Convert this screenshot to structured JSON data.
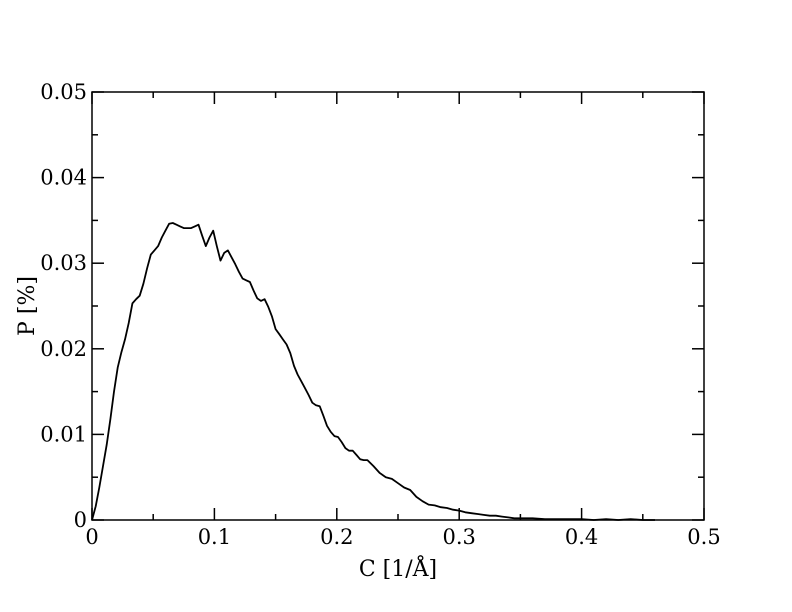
{
  "chart_data": {
    "type": "line",
    "title": "",
    "xlabel": "C [1/Å]",
    "ylabel": "P [%]",
    "xlim": [
      0,
      0.5
    ],
    "ylim": [
      0,
      0.05
    ],
    "x_ticks": [
      0,
      0.1,
      0.2,
      0.3,
      0.4,
      0.5
    ],
    "x_tick_labels": [
      "0",
      "0.1",
      "0.2",
      "0.3",
      "0.4",
      "0.5"
    ],
    "y_ticks": [
      0,
      0.01,
      0.02,
      0.03,
      0.04,
      0.05
    ],
    "y_tick_labels": [
      "0",
      "0.01",
      "0.02",
      "0.03",
      "0.04",
      "0.05"
    ],
    "x_minor_step": 0.05,
    "y_minor_step": 0.005,
    "grid": false,
    "legend": "none",
    "line_color": "#000000",
    "series": [
      {
        "x": [
          0.0,
          0.003,
          0.006,
          0.009,
          0.012,
          0.015,
          0.018,
          0.021,
          0.024,
          0.027,
          0.03,
          0.033,
          0.036,
          0.039,
          0.042,
          0.045,
          0.048,
          0.051,
          0.054,
          0.057,
          0.06,
          0.063,
          0.066,
          0.069,
          0.072,
          0.075,
          0.078,
          0.081,
          0.084,
          0.087,
          0.09,
          0.093,
          0.096,
          0.099,
          0.102,
          0.105,
          0.108,
          0.111,
          0.114,
          0.117,
          0.12,
          0.123,
          0.126,
          0.129,
          0.132,
          0.135,
          0.138,
          0.141,
          0.144,
          0.147,
          0.15,
          0.153,
          0.156,
          0.159,
          0.162,
          0.165,
          0.168,
          0.171,
          0.174,
          0.177,
          0.18,
          0.183,
          0.186,
          0.189,
          0.192,
          0.195,
          0.198,
          0.201,
          0.204,
          0.207,
          0.21,
          0.213,
          0.216,
          0.219,
          0.222,
          0.225,
          0.23,
          0.235,
          0.24,
          0.245,
          0.25,
          0.255,
          0.26,
          0.265,
          0.27,
          0.275,
          0.28,
          0.285,
          0.29,
          0.295,
          0.3,
          0.305,
          0.31,
          0.315,
          0.32,
          0.325,
          0.33,
          0.335,
          0.34,
          0.345,
          0.35,
          0.36,
          0.37,
          0.38,
          0.39,
          0.4,
          0.41,
          0.42,
          0.43,
          0.44,
          0.45,
          0.46
        ],
        "y": [
          0.0,
          0.0016,
          0.0038,
          0.0063,
          0.0088,
          0.0118,
          0.015,
          0.0178,
          0.0196,
          0.0211,
          0.023,
          0.0253,
          0.0258,
          0.0262,
          0.0276,
          0.0294,
          0.031,
          0.0315,
          0.032,
          0.033,
          0.0338,
          0.0346,
          0.0347,
          0.0345,
          0.0343,
          0.0341,
          0.0341,
          0.0341,
          0.0343,
          0.0345,
          0.0332,
          0.032,
          0.033,
          0.0338,
          0.032,
          0.0303,
          0.0312,
          0.0315,
          0.0307,
          0.0299,
          0.029,
          0.0282,
          0.028,
          0.0278,
          0.0268,
          0.0259,
          0.0256,
          0.0258,
          0.0249,
          0.0238,
          0.0223,
          0.0217,
          0.0211,
          0.0205,
          0.0195,
          0.018,
          0.017,
          0.0162,
          0.0154,
          0.0146,
          0.0137,
          0.0134,
          0.0133,
          0.0122,
          0.011,
          0.0103,
          0.0098,
          0.0097,
          0.0091,
          0.0084,
          0.0081,
          0.0081,
          0.0076,
          0.0071,
          0.007,
          0.007,
          0.0063,
          0.0055,
          0.005,
          0.0048,
          0.0043,
          0.0038,
          0.0035,
          0.0027,
          0.0022,
          0.0018,
          0.0017,
          0.0015,
          0.0014,
          0.0012,
          0.0011,
          0.0009,
          0.0008,
          0.0007,
          0.0006,
          0.0005,
          0.0005,
          0.0004,
          0.0003,
          0.0002,
          0.0002,
          0.0002,
          0.0001,
          0.0001,
          0.0001,
          0.0001,
          0.0,
          0.0001,
          0.0,
          0.0001,
          0.0,
          0.0
        ]
      }
    ]
  }
}
